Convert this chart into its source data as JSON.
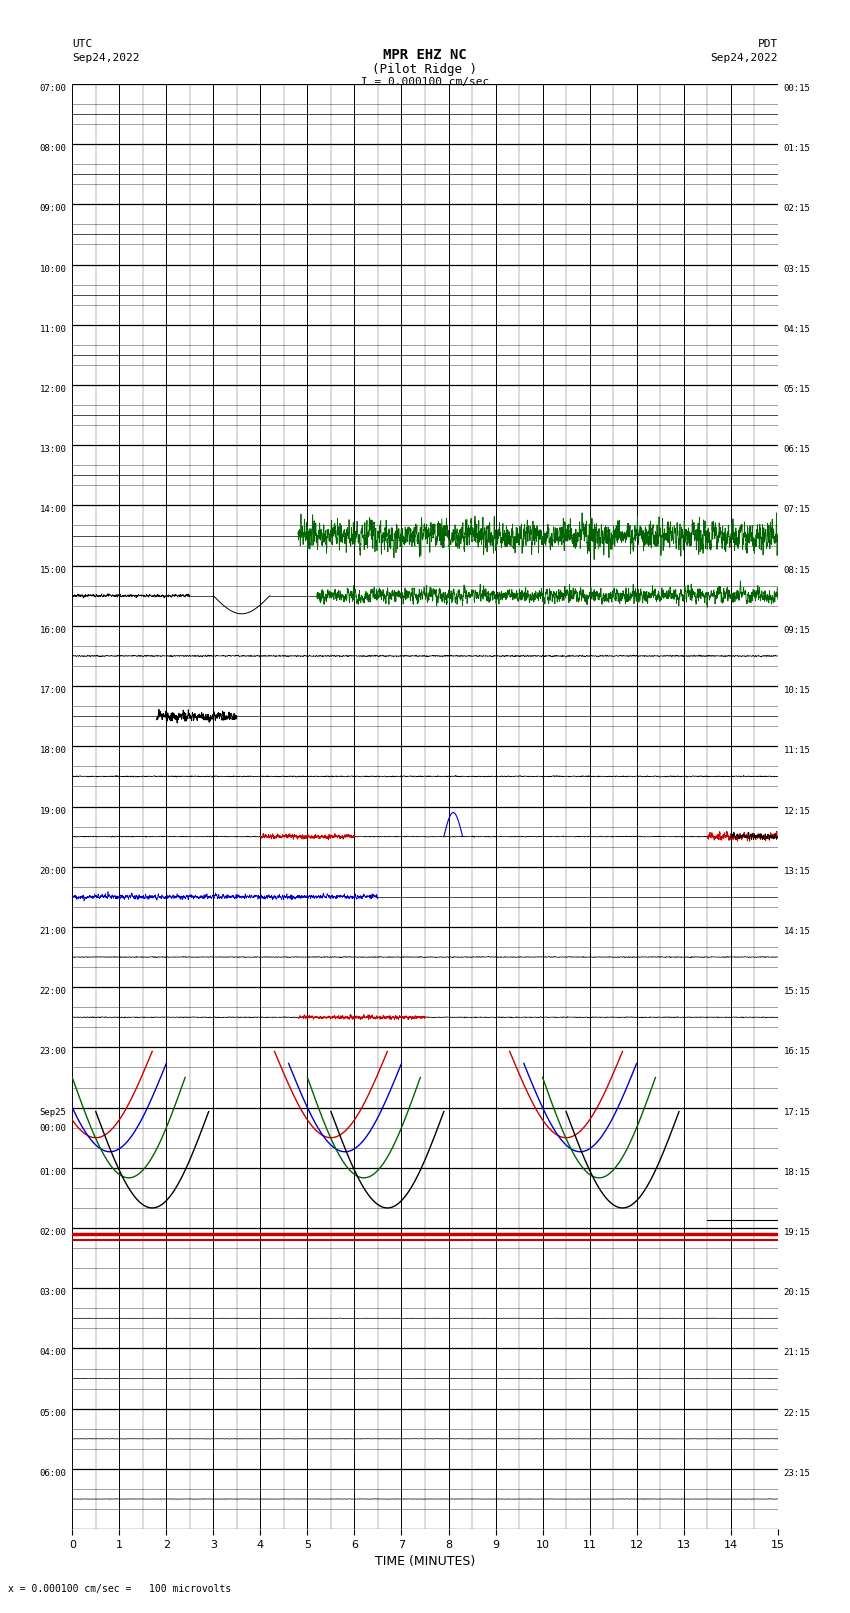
{
  "title_line1": "MPR EHZ NC",
  "title_line2": "(Pilot Ridge )",
  "scale_label": "I = 0.000100 cm/sec",
  "left_label_line1": "UTC",
  "left_label_line2": "Sep24,2022",
  "right_label_line1": "PDT",
  "right_label_line2": "Sep24,2022",
  "bottom_label": "TIME (MINUTES)",
  "footer_label": "= 0.000100 cm/sec =   100 microvolts",
  "utc_times": [
    "07:00",
    "08:00",
    "09:00",
    "10:00",
    "11:00",
    "12:00",
    "13:00",
    "14:00",
    "15:00",
    "16:00",
    "17:00",
    "18:00",
    "19:00",
    "20:00",
    "21:00",
    "22:00",
    "23:00",
    "Sep25\n00:00",
    "01:00",
    "02:00",
    "03:00",
    "04:00",
    "05:00",
    "06:00"
  ],
  "pdt_times": [
    "00:15",
    "01:15",
    "02:15",
    "03:15",
    "04:15",
    "05:15",
    "06:15",
    "07:15",
    "08:15",
    "09:15",
    "10:15",
    "11:15",
    "12:15",
    "13:15",
    "14:15",
    "15:15",
    "16:15",
    "17:15",
    "18:15",
    "19:15",
    "20:15",
    "21:15",
    "22:15",
    "23:15"
  ],
  "n_rows": 24,
  "n_subrows": 3,
  "n_minutes": 15,
  "background_color": "#ffffff",
  "major_grid_color": "#000000",
  "minor_grid_color": "#555555",
  "signal_color_black": "#000000",
  "signal_color_green": "#006400",
  "signal_color_blue": "#0000cc",
  "signal_color_red": "#cc0000",
  "figwidth": 8.5,
  "figheight": 16.13
}
